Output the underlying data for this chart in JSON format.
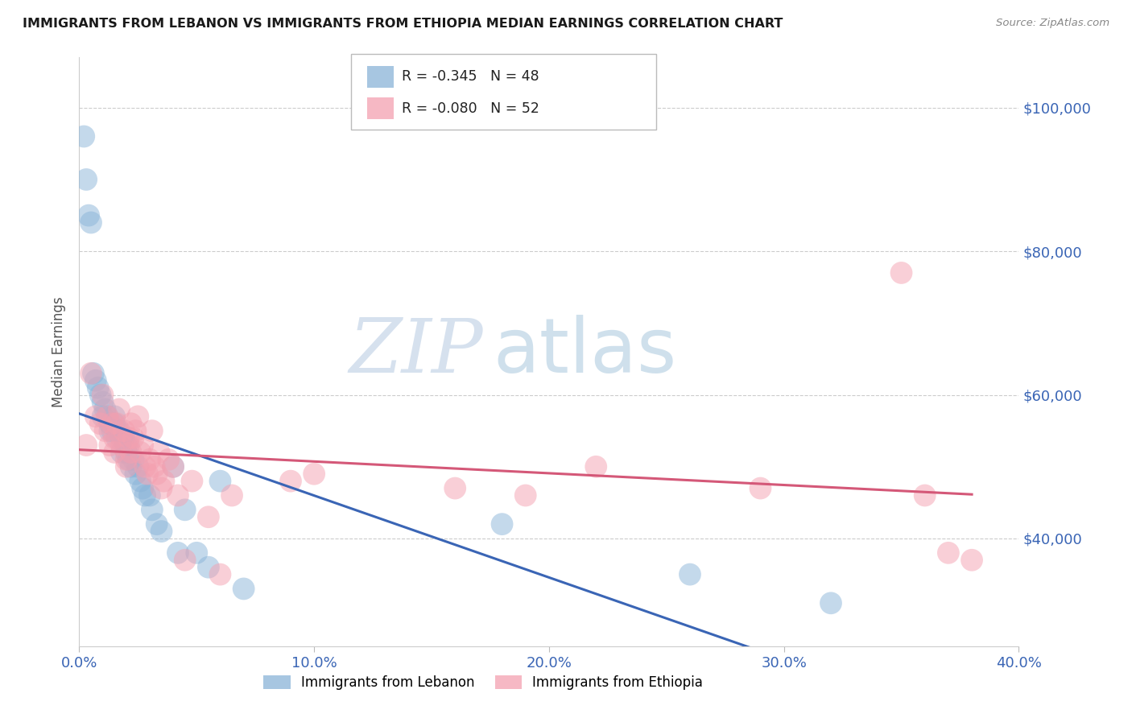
{
  "title": "IMMIGRANTS FROM LEBANON VS IMMIGRANTS FROM ETHIOPIA MEDIAN EARNINGS CORRELATION CHART",
  "source": "Source: ZipAtlas.com",
  "ylabel": "Median Earnings",
  "xlim": [
    0.0,
    0.4
  ],
  "ylim": [
    25000,
    107000
  ],
  "xtick_labels": [
    "0.0%",
    "10.0%",
    "20.0%",
    "30.0%",
    "40.0%"
  ],
  "xtick_values": [
    0.0,
    0.1,
    0.2,
    0.3,
    0.4
  ],
  "ytick_values": [
    40000,
    60000,
    80000,
    100000
  ],
  "ytick_labels": [
    "$40,000",
    "$60,000",
    "$80,000",
    "$100,000"
  ],
  "legend_label1": "Immigrants from Lebanon",
  "legend_label2": "Immigrants from Ethiopia",
  "R1": "-0.345",
  "N1": "48",
  "R2": "-0.080",
  "N2": "52",
  "color_lebanon": "#8ab4d8",
  "color_ethiopia": "#f4a0b0",
  "color_lebanon_line": "#3a65b5",
  "color_ethiopia_line": "#d45878",
  "color_ytick": "#3a65b5",
  "color_xtick": "#3a65b5",
  "watermark_zip": "ZIP",
  "watermark_atlas": "atlas",
  "lebanon_x": [
    0.002,
    0.003,
    0.004,
    0.005,
    0.006,
    0.007,
    0.008,
    0.009,
    0.01,
    0.01,
    0.011,
    0.012,
    0.013,
    0.013,
    0.014,
    0.015,
    0.015,
    0.016,
    0.016,
    0.017,
    0.018,
    0.018,
    0.019,
    0.02,
    0.02,
    0.021,
    0.021,
    0.022,
    0.023,
    0.024,
    0.025,
    0.026,
    0.027,
    0.028,
    0.03,
    0.031,
    0.033,
    0.035,
    0.04,
    0.042,
    0.045,
    0.05,
    0.055,
    0.06,
    0.07,
    0.18,
    0.26,
    0.32
  ],
  "lebanon_y": [
    96000,
    90000,
    85000,
    84000,
    63000,
    62000,
    61000,
    60000,
    59000,
    57000,
    58000,
    57000,
    56000,
    55000,
    55000,
    57000,
    56000,
    55000,
    54000,
    55000,
    54000,
    52000,
    54000,
    53000,
    52000,
    51000,
    53000,
    50000,
    51000,
    49000,
    50000,
    48000,
    47000,
    46000,
    46000,
    44000,
    42000,
    41000,
    50000,
    38000,
    44000,
    38000,
    36000,
    48000,
    33000,
    42000,
    35000,
    31000
  ],
  "ethiopia_x": [
    0.003,
    0.005,
    0.007,
    0.009,
    0.01,
    0.011,
    0.012,
    0.013,
    0.014,
    0.015,
    0.015,
    0.016,
    0.017,
    0.018,
    0.019,
    0.02,
    0.02,
    0.021,
    0.022,
    0.022,
    0.023,
    0.024,
    0.025,
    0.026,
    0.027,
    0.028,
    0.029,
    0.03,
    0.031,
    0.032,
    0.033,
    0.034,
    0.035,
    0.036,
    0.038,
    0.04,
    0.042,
    0.045,
    0.048,
    0.055,
    0.06,
    0.065,
    0.09,
    0.1,
    0.16,
    0.19,
    0.22,
    0.29,
    0.35,
    0.36,
    0.37,
    0.38
  ],
  "ethiopia_y": [
    53000,
    63000,
    57000,
    56000,
    60000,
    55000,
    57000,
    53000,
    56000,
    54000,
    52000,
    56000,
    58000,
    53000,
    55000,
    51000,
    50000,
    54000,
    52000,
    56000,
    54000,
    55000,
    57000,
    52000,
    53000,
    50000,
    49000,
    51000,
    55000,
    50000,
    49000,
    52000,
    47000,
    48000,
    51000,
    50000,
    46000,
    37000,
    48000,
    43000,
    35000,
    46000,
    48000,
    49000,
    47000,
    46000,
    50000,
    47000,
    77000,
    46000,
    38000,
    37000
  ]
}
